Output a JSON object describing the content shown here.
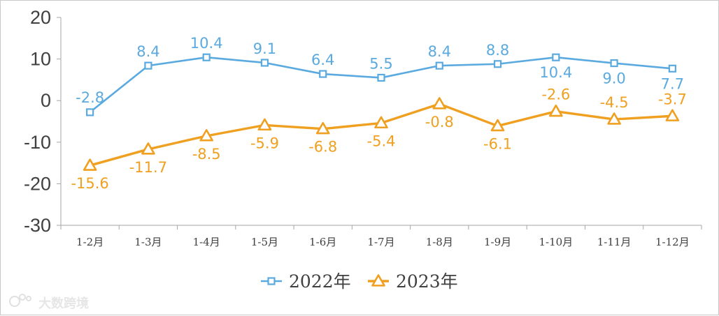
{
  "chart_data": {
    "type": "line",
    "categories": [
      "1-2月",
      "1-3月",
      "1-4月",
      "1-5月",
      "1-6月",
      "1-7月",
      "1-8月",
      "1-9月",
      "1-10月",
      "1-11月",
      "1-12月"
    ],
    "series": [
      {
        "name": "2022年",
        "values": [
          -2.8,
          8.4,
          10.4,
          9.1,
          6.4,
          5.5,
          8.4,
          8.8,
          10.4,
          9.0,
          7.7
        ],
        "labels": [
          "-2.8",
          "8.4",
          "10.4",
          "9.1",
          "6.4",
          "5.5",
          "8.4",
          "8.8",
          "10.4",
          "9.0",
          "7.7"
        ],
        "color": "#5aaae0",
        "marker": "square"
      },
      {
        "name": "2023年",
        "values": [
          -15.6,
          -11.7,
          -8.5,
          -5.9,
          -6.8,
          -5.4,
          -0.8,
          -6.1,
          -2.6,
          -4.5,
          -3.7
        ],
        "labels": [
          "-15.6",
          "-11.7",
          "-8.5",
          "-5.9",
          "-6.8",
          "-5.4",
          "-0.8",
          "-6.1",
          "-2.6",
          "-4.5",
          "-3.7"
        ],
        "color": "#f0a020",
        "marker": "triangle"
      }
    ],
    "yticks": [
      "20",
      "10",
      "0",
      "-10",
      "-20",
      "-30"
    ],
    "ylim": [
      -30,
      20
    ],
    "legend_position": "bottom",
    "grid": false
  },
  "watermark": {
    "text": "大数跨境"
  }
}
